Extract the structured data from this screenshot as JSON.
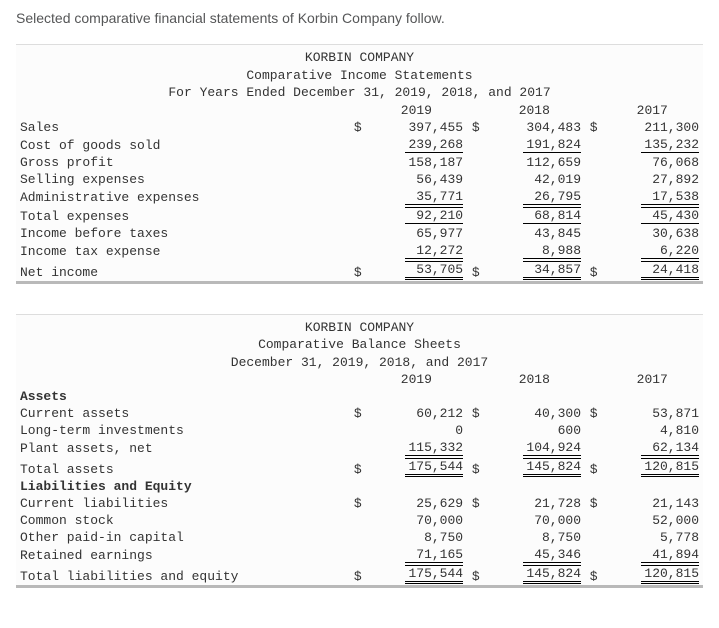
{
  "intro": "Selected comparative financial statements of Korbin Company follow.",
  "is": {
    "company": "KORBIN COMPANY",
    "title": "Comparative Income Statements",
    "period": "For Years Ended December 31, 2019, 2018, and 2017",
    "years": [
      "2019",
      "2018",
      "2017"
    ],
    "rows": [
      {
        "label": "Sales",
        "cur": "$",
        "v1": "397,455",
        "v2": "$",
        "v3": "304,483",
        "v4": "$",
        "v5": "211,300",
        "underline": "none"
      },
      {
        "label": "Cost of goods sold",
        "cur": "",
        "v1": "239,268",
        "v2": "",
        "v3": "191,824",
        "v4": "",
        "v5": "135,232",
        "underline": "single"
      },
      {
        "label": "Gross profit",
        "cur": "",
        "v1": "158,187",
        "v2": "",
        "v3": "112,659",
        "v4": "",
        "v5": "76,068",
        "underline": "none"
      },
      {
        "label": "Selling expenses",
        "cur": "",
        "v1": "56,439",
        "v2": "",
        "v3": "42,019",
        "v4": "",
        "v5": "27,892",
        "underline": "none"
      },
      {
        "label": "Administrative expenses",
        "cur": "",
        "v1": "35,771",
        "v2": "",
        "v3": "26,795",
        "v4": "",
        "v5": "17,538",
        "underline": "single"
      },
      {
        "label": "Total expenses",
        "cur": "",
        "v1": "92,210",
        "v2": "",
        "v3": "68,814",
        "v4": "",
        "v5": "45,430",
        "underline": "singletop"
      },
      {
        "label": "Income before taxes",
        "cur": "",
        "v1": "65,977",
        "v2": "",
        "v3": "43,845",
        "v4": "",
        "v5": "30,638",
        "underline": "none"
      },
      {
        "label": "Income tax expense",
        "cur": "",
        "v1": "12,272",
        "v2": "",
        "v3": "8,988",
        "v4": "",
        "v5": "6,220",
        "underline": "single"
      },
      {
        "label": "Net income",
        "cur": "$",
        "v1": "53,705",
        "v2": "$",
        "v3": "34,857",
        "v4": "$",
        "v5": "24,418",
        "underline": "dbl"
      }
    ]
  },
  "bs": {
    "company": "KORBIN COMPANY",
    "title": "Comparative Balance Sheets",
    "period": "December 31, 2019, 2018, and 2017",
    "years": [
      "2019",
      "2018",
      "2017"
    ],
    "rows": [
      {
        "label": "Assets",
        "section": true
      },
      {
        "label": "Current assets",
        "cur": "$",
        "v1": "60,212",
        "v2": "$",
        "v3": "40,300",
        "v4": "$",
        "v5": "53,871",
        "underline": "none"
      },
      {
        "label": "Long-term investments",
        "cur": "",
        "v1": "0",
        "v2": "",
        "v3": "600",
        "v4": "",
        "v5": "4,810",
        "underline": "none"
      },
      {
        "label": "Plant assets, net",
        "cur": "",
        "v1": "115,332",
        "v2": "",
        "v3": "104,924",
        "v4": "",
        "v5": "62,134",
        "underline": "single"
      },
      {
        "label": "Total assets",
        "cur": "$",
        "v1": "175,544",
        "v2": "$",
        "v3": "145,824",
        "v4": "$",
        "v5": "120,815",
        "underline": "dbl"
      },
      {
        "label": "Liabilities and Equity",
        "section": true
      },
      {
        "label": "Current liabilities",
        "cur": "$",
        "v1": "25,629",
        "v2": "$",
        "v3": "21,728",
        "v4": "$",
        "v5": "21,143",
        "underline": "none"
      },
      {
        "label": "Common stock",
        "cur": "",
        "v1": "70,000",
        "v2": "",
        "v3": "70,000",
        "v4": "",
        "v5": "52,000",
        "underline": "none"
      },
      {
        "label": "Other paid-in capital",
        "cur": "",
        "v1": "8,750",
        "v2": "",
        "v3": "8,750",
        "v4": "",
        "v5": "5,778",
        "underline": "none"
      },
      {
        "label": "Retained earnings",
        "cur": "",
        "v1": "71,165",
        "v2": "",
        "v3": "45,346",
        "v4": "",
        "v5": "41,894",
        "underline": "single"
      },
      {
        "label": "Total liabilities and equity",
        "cur": "$",
        "v1": "175,544",
        "v2": "$",
        "v3": "145,824",
        "v4": "$",
        "v5": "120,815",
        "underline": "dbl"
      }
    ]
  }
}
